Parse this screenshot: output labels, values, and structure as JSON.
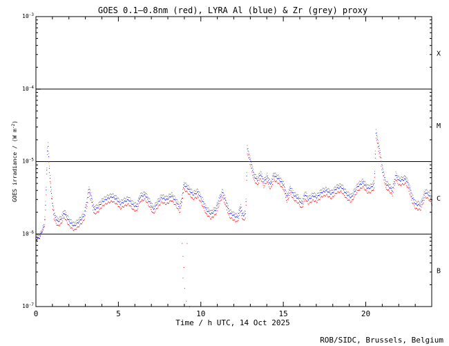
{
  "chart_data": {
    "type": "scatter",
    "title": "GOES 0.1—0.8nm (red), LYRA Al (blue) & Zr (grey) proxy",
    "xlabel": "Time / h UTC, 14 Oct 2025",
    "ylabel": "GOES irradiance / (W m",
    "ylabel_sup": "-2",
    "ylabel_close": ")",
    "credit": "ROB/SIDC, Brussels, Belgium",
    "xlim": [
      0,
      24
    ],
    "ylim_log10": [
      -7,
      -3
    ],
    "y_scale": "log",
    "x_ticks": [
      {
        "value": 0,
        "label": "0"
      },
      {
        "value": 5,
        "label": "5"
      },
      {
        "value": 10,
        "label": "10"
      },
      {
        "value": 15,
        "label": "15"
      },
      {
        "value": 20,
        "label": "20"
      }
    ],
    "y_ticks": [
      {
        "exp": -7,
        "label": "10",
        "sup": "-7"
      },
      {
        "exp": -6,
        "label": "10",
        "sup": "-6"
      },
      {
        "exp": -5,
        "label": "10",
        "sup": "-5"
      },
      {
        "exp": -4,
        "label": "10",
        "sup": "-4"
      },
      {
        "exp": -3,
        "label": "10",
        "sup": "-3"
      }
    ],
    "class_lines_log10": [
      -6,
      -5,
      -4
    ],
    "class_labels": [
      {
        "label": "X",
        "log10": -3.5
      },
      {
        "label": "M",
        "log10": -4.5
      },
      {
        "label": "C",
        "log10": -5.5
      },
      {
        "label": "B",
        "log10": -6.5
      }
    ],
    "profile": [
      [
        0.0,
        8.5e-07
      ],
      [
        0.2,
        9e-07
      ],
      [
        0.35,
        1.1e-06
      ],
      [
        0.5,
        1.3e-06
      ],
      [
        0.6,
        4e-06
      ],
      [
        0.7,
        2e-05
      ],
      [
        0.8,
        8e-06
      ],
      [
        0.9,
        4e-06
      ],
      [
        1.0,
        2.5e-06
      ],
      [
        1.1,
        1.8e-06
      ],
      [
        1.3,
        1.5e-06
      ],
      [
        1.5,
        1.6e-06
      ],
      [
        1.7,
        2e-06
      ],
      [
        1.8,
        1.8e-06
      ],
      [
        2.0,
        1.5e-06
      ],
      [
        2.3,
        1.3e-06
      ],
      [
        2.6,
        1.5e-06
      ],
      [
        2.9,
        1.8e-06
      ],
      [
        3.1,
        3e-06
      ],
      [
        3.2,
        4.2e-06
      ],
      [
        3.35,
        3.2e-06
      ],
      [
        3.5,
        2.2e-06
      ],
      [
        3.7,
        2.3e-06
      ],
      [
        4.0,
        2.8e-06
      ],
      [
        4.3,
        3.1e-06
      ],
      [
        4.6,
        3.3e-06
      ],
      [
        4.9,
        3e-06
      ],
      [
        5.1,
        2.6e-06
      ],
      [
        5.3,
        2.8e-06
      ],
      [
        5.6,
        3e-06
      ],
      [
        5.9,
        2.5e-06
      ],
      [
        6.1,
        2.4e-06
      ],
      [
        6.3,
        3.3e-06
      ],
      [
        6.6,
        3.5e-06
      ],
      [
        6.9,
        2.7e-06
      ],
      [
        7.1,
        2.2e-06
      ],
      [
        7.3,
        2.6e-06
      ],
      [
        7.6,
        3.2e-06
      ],
      [
        7.9,
        3e-06
      ],
      [
        8.2,
        3.4e-06
      ],
      [
        8.5,
        2.8e-06
      ],
      [
        8.7,
        2.3e-06
      ],
      [
        8.8,
        2.8e-06
      ],
      [
        8.95,
        4.8e-06
      ],
      [
        9.2,
        4.3e-06
      ],
      [
        9.5,
        3.5e-06
      ],
      [
        9.8,
        3.8e-06
      ],
      [
        10.1,
        2.8e-06
      ],
      [
        10.3,
        2.2e-06
      ],
      [
        10.6,
        1.9e-06
      ],
      [
        10.9,
        2.2e-06
      ],
      [
        11.1,
        3e-06
      ],
      [
        11.3,
        3.8e-06
      ],
      [
        11.5,
        2.8e-06
      ],
      [
        11.7,
        2e-06
      ],
      [
        12.0,
        1.8e-06
      ],
      [
        12.2,
        1.7e-06
      ],
      [
        12.4,
        2.4e-06
      ],
      [
        12.5,
        1.8e-06
      ],
      [
        12.7,
        1.9e-06
      ],
      [
        12.8,
        1.5e-05
      ],
      [
        13.0,
        1e-05
      ],
      [
        13.2,
        6.5e-06
      ],
      [
        13.4,
        5.5e-06
      ],
      [
        13.6,
        6.8e-06
      ],
      [
        13.8,
        5.2e-06
      ],
      [
        14.0,
        6.2e-06
      ],
      [
        14.2,
        4.8e-06
      ],
      [
        14.4,
        6.5e-06
      ],
      [
        14.7,
        5.8e-06
      ],
      [
        15.0,
        4.8e-06
      ],
      [
        15.2,
        3.2e-06
      ],
      [
        15.4,
        4.2e-06
      ],
      [
        15.6,
        3.5e-06
      ],
      [
        15.9,
        3.1e-06
      ],
      [
        16.1,
        2.6e-06
      ],
      [
        16.3,
        3.6e-06
      ],
      [
        16.5,
        3e-06
      ],
      [
        16.8,
        3.4e-06
      ],
      [
        17.0,
        3.2e-06
      ],
      [
        17.3,
        3.8e-06
      ],
      [
        17.6,
        4e-06
      ],
      [
        17.9,
        3.6e-06
      ],
      [
        18.2,
        4.3e-06
      ],
      [
        18.5,
        4.5e-06
      ],
      [
        18.8,
        3.6e-06
      ],
      [
        19.1,
        3.2e-06
      ],
      [
        19.5,
        4.6e-06
      ],
      [
        19.8,
        5.2e-06
      ],
      [
        20.1,
        4.3e-06
      ],
      [
        20.3,
        4.4e-06
      ],
      [
        20.5,
        5e-06
      ],
      [
        20.6,
        2.5e-05
      ],
      [
        20.8,
        1.5e-05
      ],
      [
        21.0,
        8e-06
      ],
      [
        21.2,
        5e-06
      ],
      [
        21.4,
        4.5e-06
      ],
      [
        21.6,
        4e-06
      ],
      [
        21.8,
        6.5e-06
      ],
      [
        22.0,
        5.5e-06
      ],
      [
        22.2,
        5.6e-06
      ],
      [
        22.4,
        5.8e-06
      ],
      [
        22.6,
        4.6e-06
      ],
      [
        22.8,
        3.2e-06
      ],
      [
        23.0,
        2.6e-06
      ],
      [
        23.3,
        2.5e-06
      ],
      [
        23.6,
        3.8e-06
      ],
      [
        23.8,
        3.5e-06
      ],
      [
        24.0,
        3e-06
      ]
    ],
    "outliers": [
      [
        8.85,
        7.5e-07
      ],
      [
        9.15,
        7.5e-07
      ],
      [
        8.9,
        5e-07
      ],
      [
        8.95,
        3.5e-07
      ],
      [
        8.9,
        2.5e-07
      ],
      [
        9.0,
        1.8e-07
      ],
      [
        9.1,
        1.2e-07
      ],
      [
        9.3,
        1e-07
      ]
    ],
    "series": [
      {
        "name": "GOES 0.1—0.8nm",
        "color": "#ff0000",
        "ratio": 0.87
      },
      {
        "name": "LYRA Al proxy",
        "color": "#0000ff",
        "ratio": 1.0
      },
      {
        "name": "LYRA Zr proxy",
        "color": "#808080",
        "ratio": 1.1
      }
    ]
  }
}
